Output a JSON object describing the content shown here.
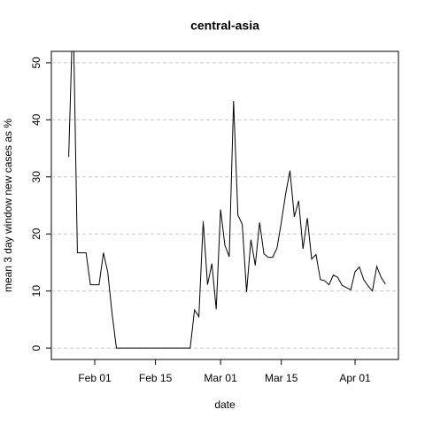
{
  "chart_data": {
    "type": "line",
    "title": "central-asia",
    "x_label": "date",
    "y_label": "mean  3  day window new cases as %",
    "x": [
      "Jan 26",
      "Jan 27",
      "Jan 28",
      "Jan 29",
      "Jan 30",
      "Jan 31",
      "Feb 01",
      "Feb 02",
      "Feb 03",
      "Feb 04",
      "Feb 05",
      "Feb 06",
      "Feb 07",
      "Feb 08",
      "Feb 09",
      "Feb 10",
      "Feb 11",
      "Feb 12",
      "Feb 13",
      "Feb 14",
      "Feb 15",
      "Feb 16",
      "Feb 17",
      "Feb 18",
      "Feb 19",
      "Feb 20",
      "Feb 21",
      "Feb 22",
      "Feb 23",
      "Feb 24",
      "Feb 25",
      "Feb 26",
      "Feb 27",
      "Feb 28",
      "Feb 29",
      "Mar 01",
      "Mar 02",
      "Mar 03",
      "Mar 04",
      "Mar 05",
      "Mar 06",
      "Mar 07",
      "Mar 08",
      "Mar 09",
      "Mar 10",
      "Mar 11",
      "Mar 12",
      "Mar 13",
      "Mar 14",
      "Mar 15",
      "Mar 16",
      "Mar 17",
      "Mar 18",
      "Mar 19",
      "Mar 20",
      "Mar 21",
      "Mar 22",
      "Mar 23",
      "Mar 24",
      "Mar 25",
      "Mar 26",
      "Mar 27",
      "Mar 28",
      "Mar 29",
      "Mar 30",
      "Mar 31",
      "Apr 01",
      "Apr 02",
      "Apr 03",
      "Apr 04",
      "Apr 05",
      "Apr 06",
      "Apr 07",
      "Apr 08"
    ],
    "values": [
      33.5,
      60,
      16.7,
      16.7,
      16.7,
      11.1,
      11.1,
      11.1,
      16.7,
      13.3,
      6,
      0,
      0,
      0,
      0,
      0,
      0,
      0,
      0,
      0,
      0,
      0,
      0,
      0,
      0,
      0,
      0,
      0,
      0,
      6.7,
      5.5,
      22.2,
      11.1,
      14.8,
      6.8,
      24.3,
      18,
      16,
      43.3,
      23.3,
      21.7,
      9.8,
      19,
      14.5,
      22,
      16.5,
      15.9,
      15.9,
      17.5,
      22,
      27,
      31.1,
      23,
      25.8,
      17.4,
      22.8,
      15.6,
      16.4,
      12,
      11.8,
      11.1,
      12.8,
      12.4,
      11,
      10.6,
      10.2,
      13.4,
      14.2,
      12,
      10.9,
      10,
      14.3,
      12.4,
      11.2
    ],
    "color": "#000000",
    "xlim": [
      "Jan 22",
      "Apr 11"
    ],
    "xticks": [
      "Feb 01",
      "Feb 15",
      "Mar 01",
      "Mar 15",
      "Apr 01"
    ],
    "ylim": [
      -2,
      52
    ],
    "yticks": [
      0,
      10,
      20,
      30,
      40,
      50
    ],
    "grid": true
  }
}
